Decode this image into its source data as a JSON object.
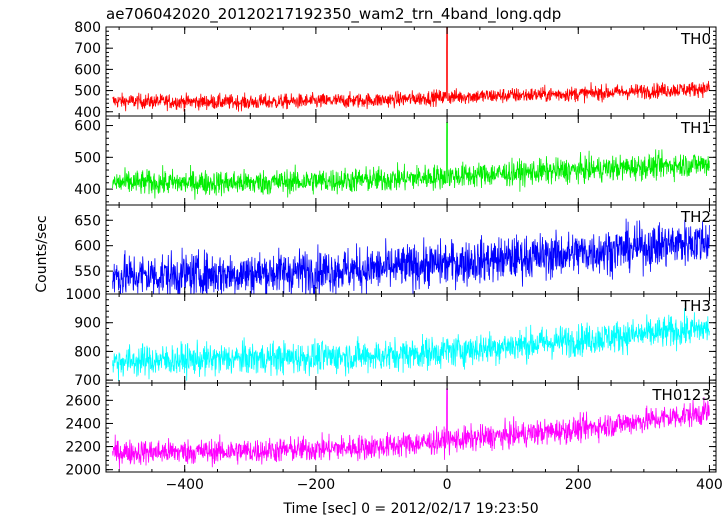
{
  "chart_data": {
    "type": "line",
    "title": "ae706042020_20120217192350_wam2_trn_4band_long.qdp",
    "xlabel": "Time [sec] 0 = 2012/02/17 19:23:50",
    "ylabel": "Counts/sec",
    "xlim": [
      -520,
      410
    ],
    "x_ticks": [
      -400,
      -200,
      0,
      200,
      400
    ],
    "grid": false,
    "panels": [
      {
        "name": "TH0",
        "color": "#ff0000",
        "ylim": [
          380,
          800
        ],
        "y_ticks": [
          400,
          500,
          600,
          700,
          800
        ],
        "profile": {
          "x": [
            -510,
            -300,
            -100,
            0,
            200,
            400
          ],
          "y": [
            450,
            445,
            455,
            470,
            485,
            510
          ]
        },
        "noise": 18,
        "spike": {
          "x": 0,
          "y": 800
        }
      },
      {
        "name": "TH1",
        "color": "#00ee00",
        "ylim": [
          350,
          630
        ],
        "y_ticks": [
          400,
          500,
          600
        ],
        "profile": {
          "x": [
            -510,
            -300,
            -100,
            0,
            200,
            400
          ],
          "y": [
            420,
            420,
            430,
            440,
            460,
            480
          ]
        },
        "noise": 20,
        "spike": {
          "x": 0,
          "y": 610
        }
      },
      {
        "name": "TH2",
        "color": "#0000ff",
        "ylim": [
          505,
          680
        ],
        "y_ticks": [
          550,
          600,
          650
        ],
        "profile": {
          "x": [
            -510,
            -300,
            -100,
            0,
            200,
            400
          ],
          "y": [
            540,
            545,
            555,
            565,
            585,
            610
          ]
        },
        "noise": 22,
        "spike": null
      },
      {
        "name": "TH3",
        "color": "#00ffff",
        "ylim": [
          690,
          1000
        ],
        "y_ticks": [
          700,
          800,
          900,
          1000
        ],
        "profile": {
          "x": [
            -510,
            -300,
            -100,
            0,
            200,
            400
          ],
          "y": [
            765,
            775,
            785,
            800,
            840,
            880
          ]
        },
        "noise": 28,
        "spike": null
      },
      {
        "name": "TH0123",
        "color": "#ff00ff",
        "ylim": [
          1980,
          2750
        ],
        "y_ticks": [
          2000,
          2200,
          2400,
          2600
        ],
        "profile": {
          "x": [
            -510,
            -300,
            -100,
            0,
            200,
            400
          ],
          "y": [
            2150,
            2160,
            2200,
            2250,
            2350,
            2500
          ]
        },
        "noise": 55,
        "spike": {
          "x": 0,
          "y": 2700
        }
      }
    ]
  }
}
